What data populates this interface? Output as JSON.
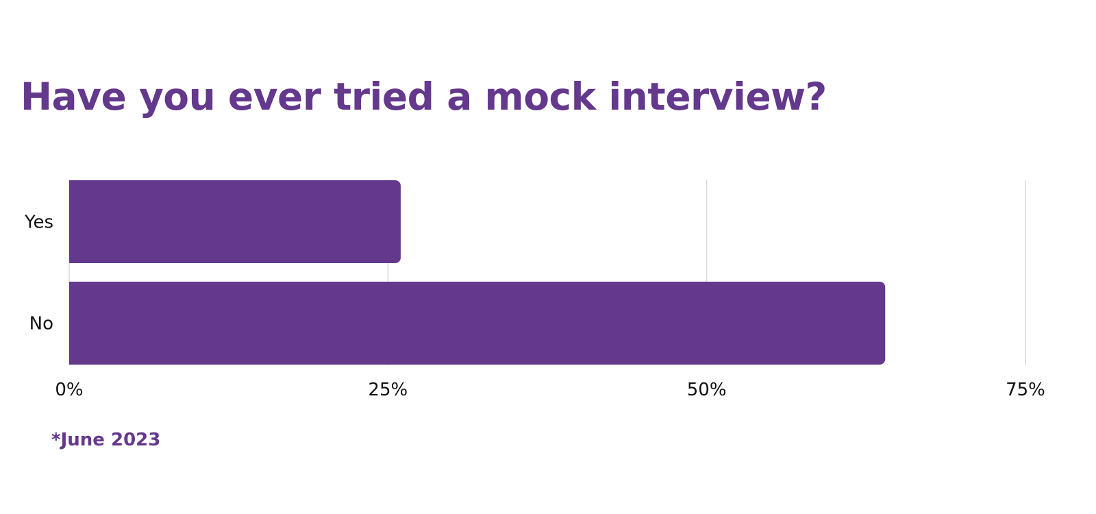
{
  "chart_data": {
    "type": "bar",
    "orientation": "horizontal",
    "title": "Have you ever tried a mock interview?",
    "categories": [
      "Yes",
      "No"
    ],
    "values": [
      26,
      64
    ],
    "xlim": [
      0,
      75
    ],
    "x_ticks": [
      0,
      25,
      50,
      75
    ],
    "x_tick_labels": [
      "0%",
      "25%",
      "50%",
      "75%"
    ],
    "xlabel": "",
    "ylabel": "",
    "grid": true,
    "legend": "none",
    "footnote": "*June 2023"
  },
  "colors": {
    "bar": "#64388c",
    "title": "#64388c",
    "footnote": "#64388c",
    "grid": "#d9d9d9",
    "text": "#111111"
  }
}
